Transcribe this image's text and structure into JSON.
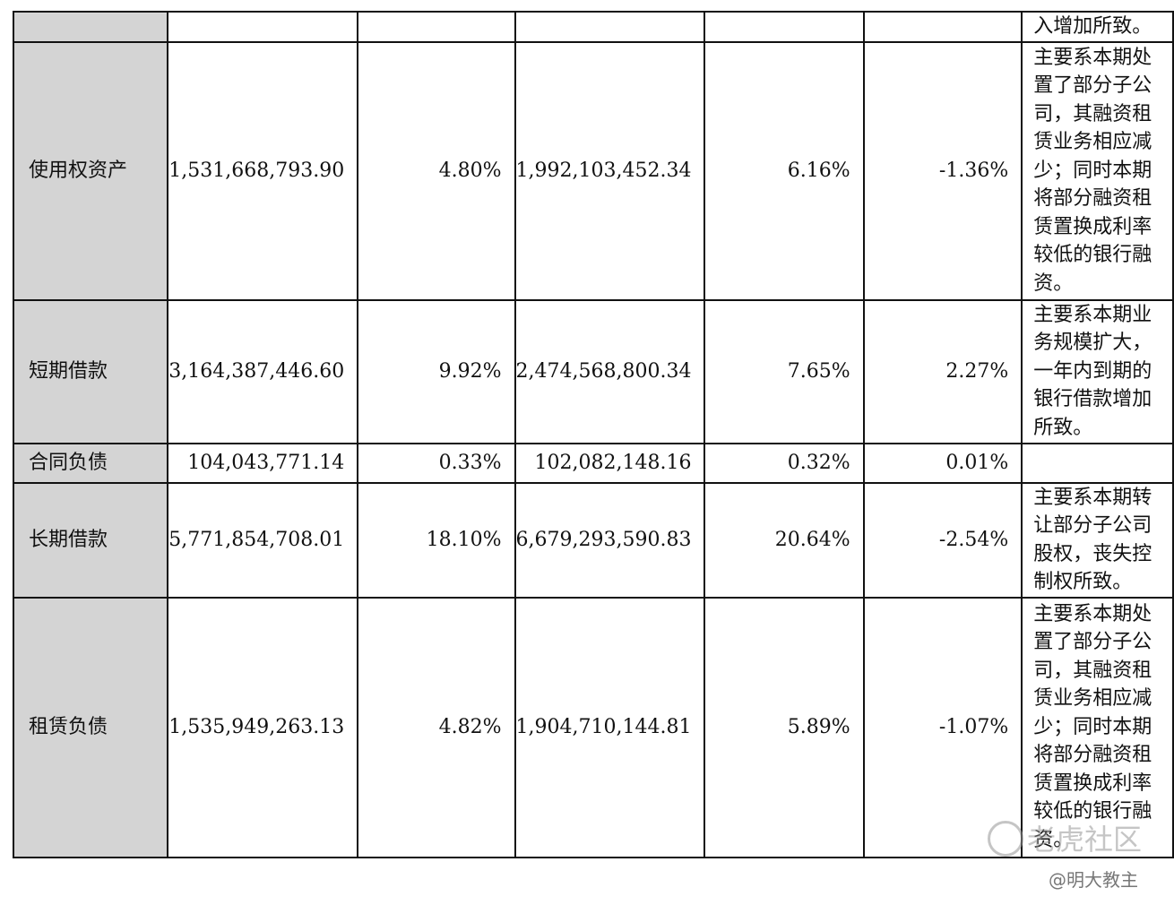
{
  "table": {
    "rows": [
      {
        "label": "",
        "v1": "",
        "r1": "",
        "v2": "",
        "r2": "",
        "change": "",
        "note": "入增加所致。"
      },
      {
        "label": "使用权资产",
        "v1": "1,531,668,793.90",
        "r1": "4.80%",
        "v2": "1,992,103,452.34",
        "r2": "6.16%",
        "change": "-1.36%",
        "note": "主要系本期处置了部分子公司，其融资租赁业务相应减少；同时本期将部分融资租赁置换成利率较低的银行融资。"
      },
      {
        "label": "短期借款",
        "v1": "3,164,387,446.60",
        "r1": "9.92%",
        "v2": "2,474,568,800.34",
        "r2": "7.65%",
        "change": "2.27%",
        "note": "主要系本期业务规模扩大，一年内到期的银行借款增加所致。"
      },
      {
        "label": "合同负债",
        "v1": "104,043,771.14",
        "r1": "0.33%",
        "v2": "102,082,148.16",
        "r2": "0.32%",
        "change": "0.01%",
        "note": ""
      },
      {
        "label": "长期借款",
        "v1": "5,771,854,708.01",
        "r1": "18.10%",
        "v2": "6,679,293,590.83",
        "r2": "20.64%",
        "change": "-2.54%",
        "note": "主要系本期转让部分子公司股权，丧失控制权所致。"
      },
      {
        "label": "租赁负债",
        "v1": "1,535,949,263.13",
        "r1": "4.82%",
        "v2": "1,904,710,144.81",
        "r2": "5.89%",
        "change": "-1.07%",
        "note": "主要系本期处置了部分子公司，其融资租赁业务相应减少；同时本期将部分融资租赁置换成利率较低的银行融资。"
      }
    ]
  },
  "watermark": {
    "community": "老虎社区",
    "author": "@明大教主"
  }
}
